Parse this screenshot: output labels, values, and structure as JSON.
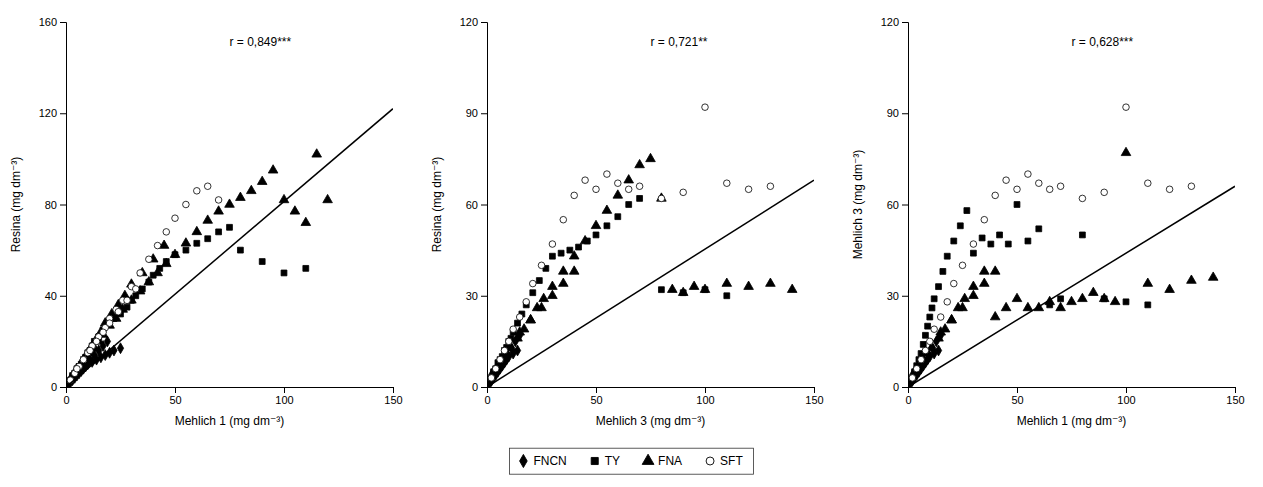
{
  "chart_data": [
    {
      "type": "scatter",
      "xlabel": "Mehlich 1 (mg dm⁻³)",
      "ylabel": "Resina (mg dm⁻³)",
      "annotation": "r = 0,849***",
      "xlim": [
        0,
        150
      ],
      "ylim": [
        0,
        160
      ],
      "xticks": [
        0,
        50,
        100,
        150
      ],
      "yticks": [
        0,
        40,
        80,
        120,
        160
      ],
      "grid": false,
      "legend": "bottom",
      "series": [
        {
          "name": "FNCN",
          "marker": "diamond",
          "color": "black",
          "x": [
            1,
            2,
            3,
            4,
            5,
            6,
            7,
            8,
            9,
            10,
            12,
            14,
            16,
            18,
            20,
            22,
            25,
            3,
            5,
            7,
            9,
            11,
            13,
            15,
            17,
            19
          ],
          "values": [
            1,
            2,
            3,
            4,
            5,
            6,
            7,
            8,
            9,
            10,
            11,
            12,
            13,
            14,
            15,
            16,
            17,
            4,
            6,
            8,
            10,
            12,
            14,
            16,
            18,
            20
          ]
        },
        {
          "name": "TY",
          "marker": "square",
          "color": "black",
          "x": [
            2,
            3,
            4,
            5,
            6,
            7,
            8,
            9,
            10,
            11,
            12,
            13,
            15,
            17,
            20,
            22,
            25,
            28,
            30,
            32,
            35,
            38,
            40,
            43,
            46,
            50,
            55,
            60,
            65,
            70,
            75,
            80,
            90,
            100,
            110
          ],
          "values": [
            3,
            5,
            6,
            8,
            9,
            10,
            12,
            13,
            15,
            16,
            18,
            20,
            22,
            25,
            28,
            30,
            32,
            35,
            38,
            40,
            43,
            46,
            49,
            52,
            55,
            58,
            60,
            63,
            65,
            68,
            70,
            60,
            55,
            50,
            52
          ]
        },
        {
          "name": "FNA",
          "marker": "triangle",
          "color": "black",
          "x": [
            3,
            5,
            7,
            9,
            11,
            13,
            15,
            17,
            20,
            23,
            26,
            30,
            34,
            38,
            42,
            46,
            50,
            55,
            60,
            65,
            70,
            75,
            80,
            85,
            90,
            95,
            100,
            105,
            110,
            115,
            120,
            8,
            10,
            12,
            14,
            16,
            18,
            21,
            24,
            27,
            30,
            35,
            40,
            45
          ],
          "values": [
            5,
            8,
            10,
            13,
            15,
            17,
            20,
            23,
            27,
            30,
            34,
            38,
            42,
            46,
            50,
            54,
            58,
            63,
            68,
            73,
            77,
            80,
            83,
            86,
            90,
            95,
            82,
            77,
            72,
            102,
            82,
            12,
            15,
            18,
            21,
            24,
            28,
            32,
            36,
            40,
            45,
            50,
            56,
            62
          ]
        },
        {
          "name": "SFT",
          "marker": "circle-open",
          "color": "black",
          "x": [
            2,
            4,
            6,
            8,
            10,
            12,
            15,
            18,
            20,
            23,
            26,
            30,
            34,
            38,
            42,
            46,
            50,
            55,
            60,
            65,
            70,
            5,
            8,
            11,
            14,
            17,
            20,
            24,
            28,
            32
          ],
          "values": [
            3,
            6,
            9,
            12,
            15,
            18,
            22,
            26,
            30,
            34,
            38,
            44,
            50,
            56,
            62,
            68,
            74,
            80,
            86,
            88,
            82,
            8,
            12,
            16,
            20,
            24,
            28,
            33,
            38,
            43
          ]
        },
        {
          "type": "line",
          "line_style": "solid",
          "color": "black",
          "x": [
            0,
            150
          ],
          "values": [
            0,
            122
          ]
        }
      ]
    },
    {
      "type": "scatter",
      "xlabel": "Mehlich 3 (mg dm⁻³)",
      "ylabel": "Resina (mg dm⁻³)",
      "annotation": "r = 0,721**",
      "xlim": [
        0,
        150
      ],
      "ylim": [
        0,
        120
      ],
      "xticks": [
        0,
        50,
        100,
        150
      ],
      "yticks": [
        0,
        30,
        60,
        90,
        120
      ],
      "grid": false,
      "series": [
        {
          "name": "FNCN",
          "marker": "diamond",
          "color": "black",
          "x": [
            1,
            2,
            3,
            4,
            5,
            6,
            7,
            8,
            9,
            10,
            12,
            14,
            3,
            5,
            7,
            9,
            11,
            13,
            15
          ],
          "values": [
            1,
            2,
            3,
            4,
            5,
            6,
            7,
            8,
            9,
            10,
            11,
            12,
            5,
            7,
            9,
            11,
            13,
            15,
            17
          ]
        },
        {
          "name": "TY",
          "marker": "square",
          "color": "black",
          "x": [
            2,
            3,
            4,
            5,
            6,
            7,
            8,
            9,
            10,
            11,
            12,
            14,
            16,
            18,
            21,
            24,
            27,
            30,
            34,
            38,
            42,
            46,
            50,
            55,
            60,
            65,
            70,
            80,
            90,
            100,
            110
          ],
          "values": [
            3,
            5,
            6,
            8,
            9,
            10,
            12,
            13,
            15,
            16,
            18,
            21,
            24,
            27,
            31,
            35,
            39,
            43,
            44,
            45,
            46,
            48,
            50,
            53,
            56,
            60,
            62,
            32,
            31,
            32,
            30
          ]
        },
        {
          "name": "FNA",
          "marker": "triangle",
          "color": "black",
          "x": [
            3,
            5,
            7,
            9,
            11,
            14,
            17,
            20,
            23,
            26,
            30,
            35,
            40,
            45,
            50,
            55,
            60,
            65,
            70,
            75,
            80,
            85,
            90,
            95,
            100,
            110,
            120,
            130,
            140,
            15,
            20,
            25,
            30,
            35,
            40
          ],
          "values": [
            5,
            7,
            9,
            11,
            13,
            16,
            19,
            22,
            26,
            29,
            33,
            38,
            43,
            48,
            53,
            58,
            63,
            68,
            73,
            75,
            62,
            32,
            31,
            33,
            32,
            34,
            33,
            34,
            32,
            18,
            22,
            26,
            30,
            34,
            38
          ]
        },
        {
          "name": "SFT",
          "marker": "circle-open",
          "color": "black",
          "x": [
            2,
            4,
            6,
            8,
            10,
            12,
            15,
            18,
            21,
            25,
            30,
            35,
            40,
            45,
            50,
            55,
            60,
            65,
            70,
            80,
            90,
            100,
            110,
            120,
            130
          ],
          "values": [
            3,
            6,
            9,
            12,
            15,
            19,
            23,
            28,
            34,
            40,
            47,
            55,
            63,
            68,
            65,
            70,
            67,
            65,
            66,
            62,
            64,
            92,
            67,
            65,
            66
          ]
        },
        {
          "type": "line",
          "line_style": "solid",
          "color": "black",
          "x": [
            0,
            150
          ],
          "values": [
            0,
            68
          ]
        }
      ]
    },
    {
      "type": "scatter",
      "xlabel": "Mehlich 1 (mg dm⁻³)",
      "ylabel": "Mehlich 3 (mg dm⁻³)",
      "annotation": "r = 0,628***",
      "xlim": [
        0,
        150
      ],
      "ylim": [
        0,
        120
      ],
      "xticks": [
        0,
        50,
        100,
        150
      ],
      "yticks": [
        0,
        30,
        60,
        90,
        120
      ],
      "grid": false,
      "series": [
        {
          "name": "FNCN",
          "marker": "diamond",
          "color": "black",
          "x": [
            1,
            2,
            3,
            4,
            5,
            6,
            7,
            8,
            9,
            10,
            12,
            14,
            3,
            5,
            7,
            9,
            11,
            13,
            15
          ],
          "values": [
            1,
            2,
            3,
            4,
            5,
            6,
            7,
            8,
            9,
            10,
            11,
            12,
            5,
            7,
            9,
            11,
            13,
            15,
            17
          ]
        },
        {
          "name": "TY",
          "marker": "square",
          "color": "black",
          "x": [
            2,
            3,
            4,
            5,
            6,
            7,
            8,
            9,
            10,
            11,
            12,
            14,
            16,
            18,
            21,
            24,
            27,
            30,
            34,
            38,
            42,
            46,
            50,
            55,
            60,
            65,
            70,
            80,
            90,
            100,
            110
          ],
          "values": [
            3,
            5,
            7,
            9,
            11,
            14,
            17,
            20,
            23,
            26,
            29,
            33,
            38,
            43,
            48,
            53,
            58,
            44,
            49,
            47,
            50,
            47,
            60,
            48,
            52,
            27,
            29,
            50,
            29,
            28,
            27
          ]
        },
        {
          "name": "FNA",
          "marker": "triangle",
          "color": "black",
          "x": [
            3,
            5,
            7,
            9,
            11,
            14,
            17,
            20,
            23,
            26,
            30,
            35,
            40,
            45,
            50,
            55,
            60,
            65,
            70,
            75,
            80,
            85,
            90,
            95,
            100,
            110,
            120,
            130,
            140,
            15,
            20,
            25,
            30,
            35,
            40
          ],
          "values": [
            5,
            7,
            9,
            11,
            13,
            16,
            19,
            22,
            26,
            29,
            33,
            38,
            23,
            26,
            29,
            26,
            26,
            28,
            26,
            28,
            29,
            31,
            29,
            28,
            77,
            34,
            32,
            35,
            36,
            18,
            22,
            26,
            30,
            34,
            38
          ]
        },
        {
          "name": "SFT",
          "marker": "circle-open",
          "color": "black",
          "x": [
            2,
            4,
            6,
            8,
            10,
            12,
            15,
            18,
            21,
            25,
            30,
            35,
            40,
            45,
            50,
            55,
            60,
            65,
            70,
            80,
            90,
            100,
            110,
            120,
            130
          ],
          "values": [
            3,
            6,
            9,
            12,
            15,
            19,
            23,
            28,
            34,
            40,
            47,
            55,
            63,
            68,
            65,
            70,
            67,
            65,
            66,
            62,
            64,
            92,
            67,
            65,
            66
          ]
        },
        {
          "type": "line",
          "line_style": "solid",
          "color": "black",
          "x": [
            0,
            150
          ],
          "values": [
            0,
            66
          ]
        }
      ]
    }
  ]
}
